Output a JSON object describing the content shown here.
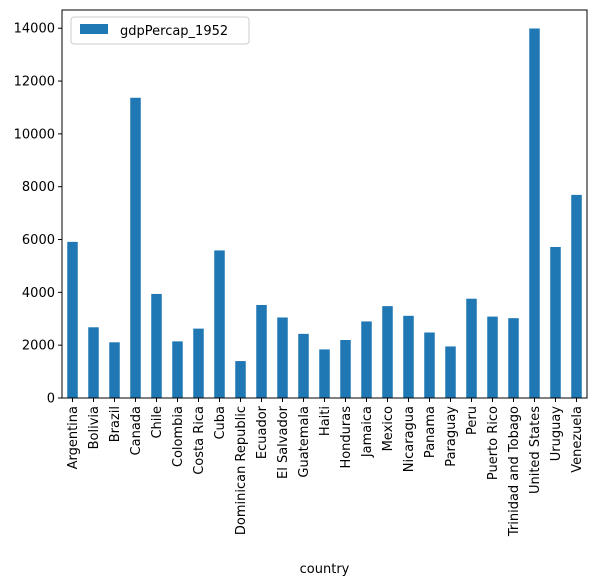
{
  "chart_data": {
    "type": "bar",
    "categories": [
      "Argentina",
      "Bolivia",
      "Brazil",
      "Canada",
      "Chile",
      "Colombia",
      "Costa Rica",
      "Cuba",
      "Dominican Republic",
      "Ecuador",
      "El Salvador",
      "Guatemala",
      "Haiti",
      "Honduras",
      "Jamaica",
      "Mexico",
      "Nicaragua",
      "Panama",
      "Paraguay",
      "Peru",
      "Puerto Rico",
      "Trinidad and Tobago",
      "United States",
      "Uruguay",
      "Venezuela"
    ],
    "series": [
      {
        "name": "gdpPercap_1952",
        "color": "#1f77b4",
        "values": [
          5911,
          2677,
          2109,
          11367,
          3940,
          2144,
          2627,
          5587,
          1398,
          3522,
          3048,
          2428,
          1840,
          2195,
          2899,
          3478,
          3112,
          2480,
          1952,
          3759,
          3082,
          3023,
          13990,
          5717,
          7690
        ]
      }
    ],
    "title": "",
    "xlabel": "country",
    "ylabel": "",
    "ylim": [
      0,
      14690
    ],
    "yticks": [
      0,
      2000,
      4000,
      6000,
      8000,
      10000,
      12000,
      14000
    ],
    "grid": false,
    "legend": "top-left"
  }
}
